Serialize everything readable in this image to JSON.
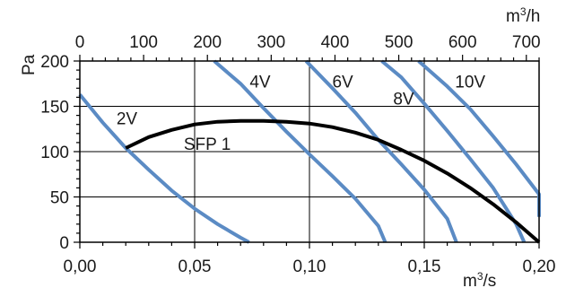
{
  "chart_data": {
    "type": "line",
    "x_bottom": {
      "label": "m³/s",
      "range": [
        0,
        0.2
      ],
      "ticks": [
        0,
        0.05,
        0.1,
        0.15,
        0.2
      ],
      "tick_labels": [
        "0,00",
        "0,05",
        "0,10",
        "0,15",
        "0,20"
      ]
    },
    "x_top": {
      "label": "m³/h",
      "range": [
        0,
        720
      ],
      "ticks": [
        0,
        100,
        200,
        300,
        400,
        500,
        600,
        700
      ],
      "tick_labels": [
        "0",
        "100",
        "200",
        "300",
        "400",
        "500",
        "600",
        "700"
      ]
    },
    "y": {
      "label": "Pa",
      "range": [
        0,
        200
      ],
      "ticks": [
        0,
        50,
        100,
        150,
        200
      ],
      "tick_labels": [
        "0",
        "50",
        "100",
        "150",
        "200"
      ]
    },
    "grid": true,
    "colors": {
      "fan_curves": "#5b8bc4",
      "sfp_curve": "#000000",
      "grid": "#000000"
    },
    "series": [
      {
        "name": "2V",
        "points": [
          [
            0.0,
            163
          ],
          [
            0.01,
            132
          ],
          [
            0.02,
            104
          ],
          [
            0.03,
            80
          ],
          [
            0.04,
            57
          ],
          [
            0.05,
            37
          ],
          [
            0.06,
            20
          ],
          [
            0.07,
            5
          ],
          [
            0.0737,
            0
          ]
        ]
      },
      {
        "name": "4V",
        "points": [
          [
            0.0585,
            200
          ],
          [
            0.07,
            175
          ],
          [
            0.08,
            148
          ],
          [
            0.09,
            122
          ],
          [
            0.1,
            97
          ],
          [
            0.11,
            73
          ],
          [
            0.12,
            48
          ],
          [
            0.13,
            18
          ],
          [
            0.133,
            0
          ]
        ]
      },
      {
        "name": "6V",
        "points": [
          [
            0.0985,
            200
          ],
          [
            0.11,
            170
          ],
          [
            0.12,
            143
          ],
          [
            0.13,
            113
          ],
          [
            0.14,
            86
          ],
          [
            0.15,
            58
          ],
          [
            0.16,
            26
          ],
          [
            0.164,
            0
          ]
        ]
      },
      {
        "name": "8V",
        "points": [
          [
            0.1315,
            200
          ],
          [
            0.14,
            182
          ],
          [
            0.15,
            153
          ],
          [
            0.16,
            123
          ],
          [
            0.17,
            92
          ],
          [
            0.18,
            60
          ],
          [
            0.19,
            20
          ],
          [
            0.1935,
            0
          ]
        ]
      },
      {
        "name": "10V",
        "points": [
          [
            0.1475,
            200
          ],
          [
            0.16,
            172
          ],
          [
            0.17,
            147
          ],
          [
            0.18,
            117
          ],
          [
            0.19,
            86
          ],
          [
            0.2,
            53
          ],
          [
            0.2,
            28
          ]
        ]
      },
      {
        "name": "SFP 1",
        "points": [
          [
            0.02,
            104
          ],
          [
            0.03,
            116
          ],
          [
            0.04,
            124
          ],
          [
            0.05,
            130
          ],
          [
            0.06,
            133
          ],
          [
            0.07,
            134
          ],
          [
            0.08,
            134
          ],
          [
            0.09,
            133
          ],
          [
            0.1,
            131
          ],
          [
            0.11,
            127
          ],
          [
            0.12,
            121
          ],
          [
            0.13,
            113
          ],
          [
            0.14,
            102
          ],
          [
            0.15,
            90
          ],
          [
            0.16,
            76
          ],
          [
            0.17,
            60
          ],
          [
            0.18,
            42
          ],
          [
            0.19,
            22
          ],
          [
            0.2,
            0
          ]
        ]
      }
    ],
    "curve_labels": [
      {
        "text": "2V",
        "x": 0.0205,
        "y": 135
      },
      {
        "text": "4V",
        "x": 0.0785,
        "y": 176
      },
      {
        "text": "6V",
        "x": 0.1145,
        "y": 176
      },
      {
        "text": "8V",
        "x": 0.141,
        "y": 157
      },
      {
        "text": "10V",
        "x": 0.17,
        "y": 176
      },
      {
        "text": "SFP 1",
        "x": 0.0555,
        "y": 107
      }
    ]
  }
}
